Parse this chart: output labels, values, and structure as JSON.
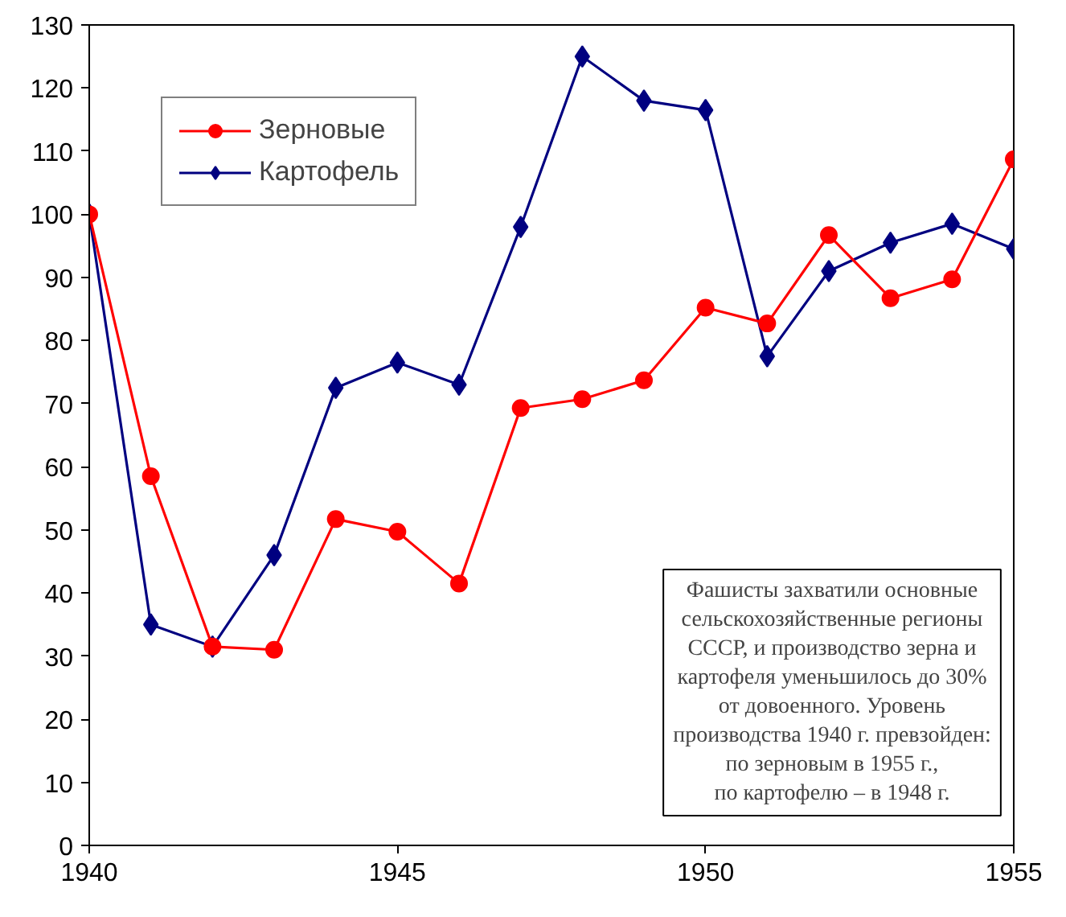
{
  "chart_data": {
    "type": "line",
    "x": [
      1940,
      1941,
      1942,
      1943,
      1944,
      1945,
      1946,
      1947,
      1948,
      1949,
      1950,
      1951,
      1952,
      1953,
      1954,
      1955
    ],
    "series": [
      {
        "name": "Зерновые",
        "color": "#ff0000",
        "marker": "circle",
        "values": [
          100,
          58.5,
          31.5,
          31,
          51.7,
          49.7,
          41.5,
          69.3,
          70.7,
          73.7,
          85.2,
          82.7,
          96.7,
          86.7,
          89.7,
          108.7
        ]
      },
      {
        "name": "Картофель",
        "color": "#000080",
        "marker": "diamond",
        "values": [
          100,
          35,
          31.5,
          46,
          72.5,
          76.5,
          73,
          98,
          125,
          118,
          116.5,
          77.5,
          91,
          95.5,
          98.5,
          94.5
        ]
      }
    ],
    "xlim": [
      1940,
      1955
    ],
    "xticks": [
      1940,
      1945,
      1950,
      1955
    ],
    "ylim": [
      0,
      130
    ],
    "yticks": [
      0,
      10,
      20,
      30,
      40,
      50,
      60,
      70,
      80,
      90,
      100,
      110,
      120,
      130
    ],
    "grid": false,
    "legend": "top left",
    "annotations": [
      "Фашисты захватили основные\nсельскохозяйственные регионы\nСССР, и производство зерна и\nкартофеля уменьшилось до 30%\nот довоенного. Уровень\nпроизводства 1940 г. превзойден:\nпо зерновым в 1955 г.,\nпо картофелю – в 1948 г."
    ]
  }
}
